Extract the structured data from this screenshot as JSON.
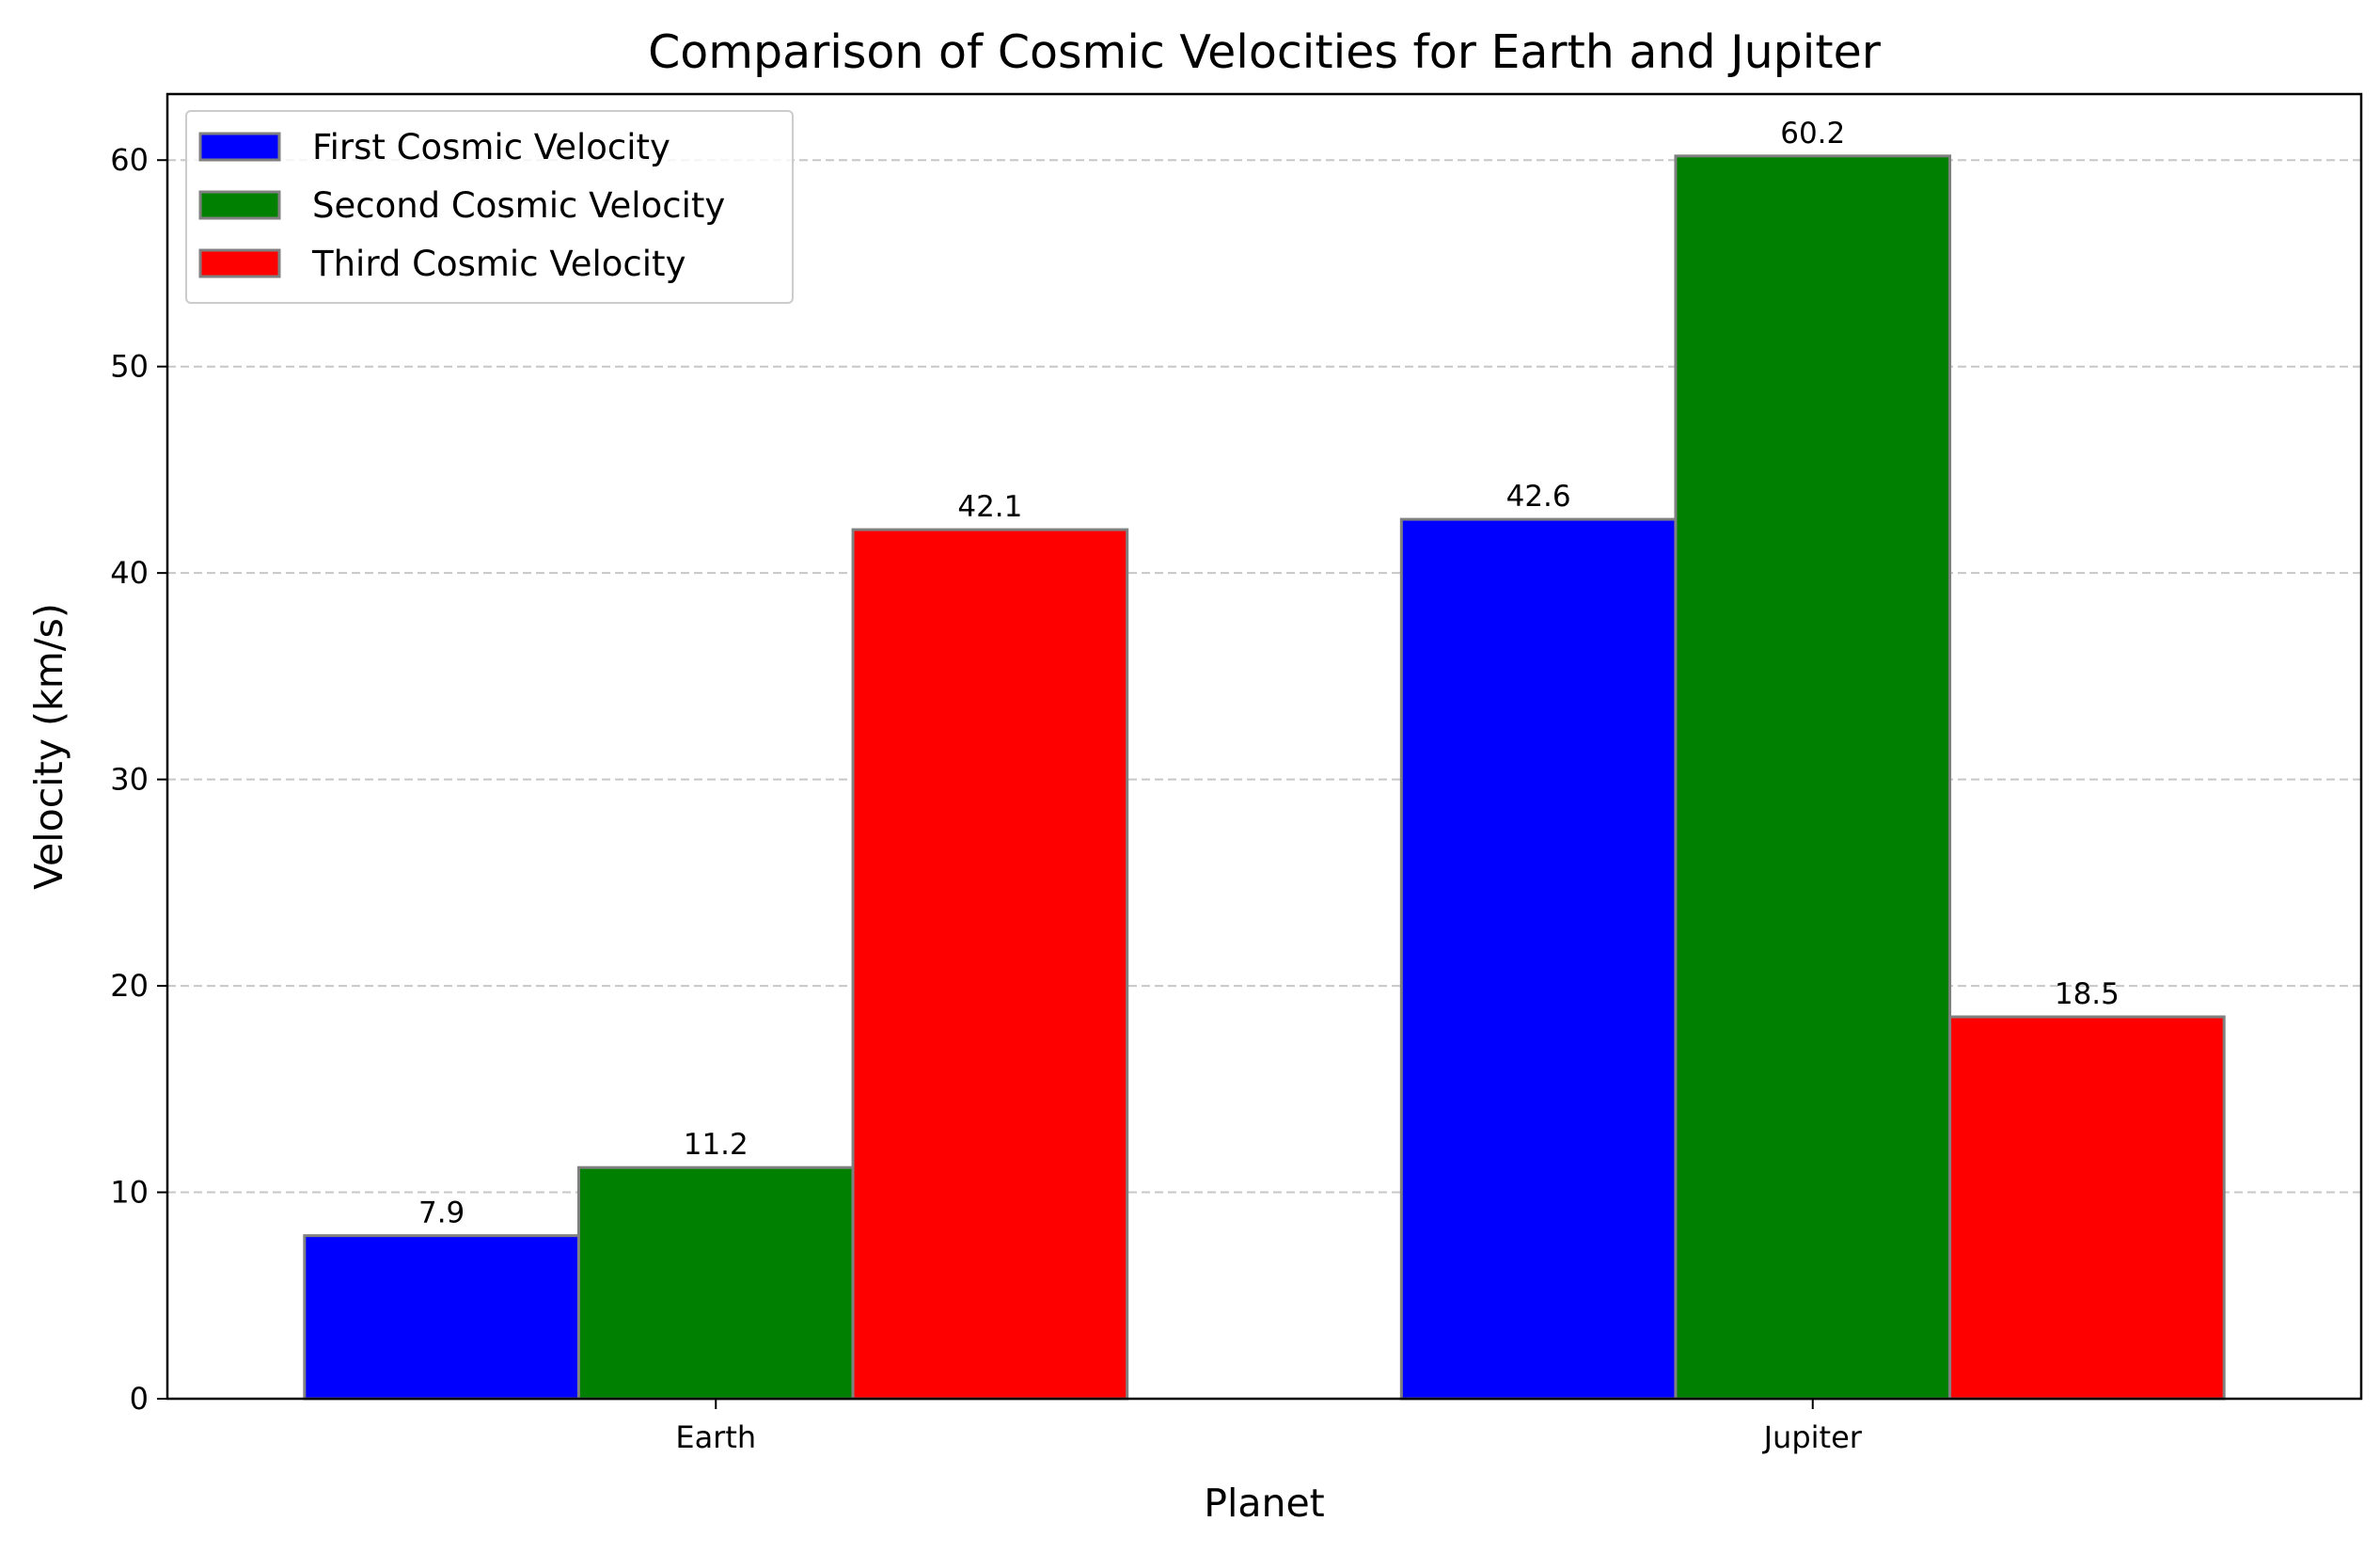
{
  "chart_data": {
    "type": "bar",
    "title": "Comparison of Cosmic Velocities for Earth and Jupiter",
    "xlabel": "Planet",
    "ylabel": "Velocity (km/s)",
    "categories": [
      "Earth",
      "Jupiter"
    ],
    "series": [
      {
        "name": "First Cosmic Velocity",
        "values": [
          7.9,
          42.6
        ],
        "color": "#0000ff"
      },
      {
        "name": "Second Cosmic Velocity",
        "values": [
          11.2,
          60.2
        ],
        "color": "#008000"
      },
      {
        "name": "Third Cosmic Velocity",
        "values": [
          42.1,
          18.5
        ],
        "color": "#ff0000"
      }
    ],
    "value_labels": [
      [
        "7.9",
        "42.6"
      ],
      [
        "11.2",
        "60.2"
      ],
      [
        "42.1",
        "18.5"
      ]
    ],
    "ylim": [
      0,
      63.2
    ],
    "yticks": [
      0,
      10,
      20,
      30,
      40,
      50,
      60
    ],
    "ytick_labels": [
      "0",
      "10",
      "20",
      "30",
      "40",
      "50",
      "60"
    ],
    "grid": "y-dashed",
    "legend_position": "top-left",
    "bar_edge_color": "#808080"
  }
}
